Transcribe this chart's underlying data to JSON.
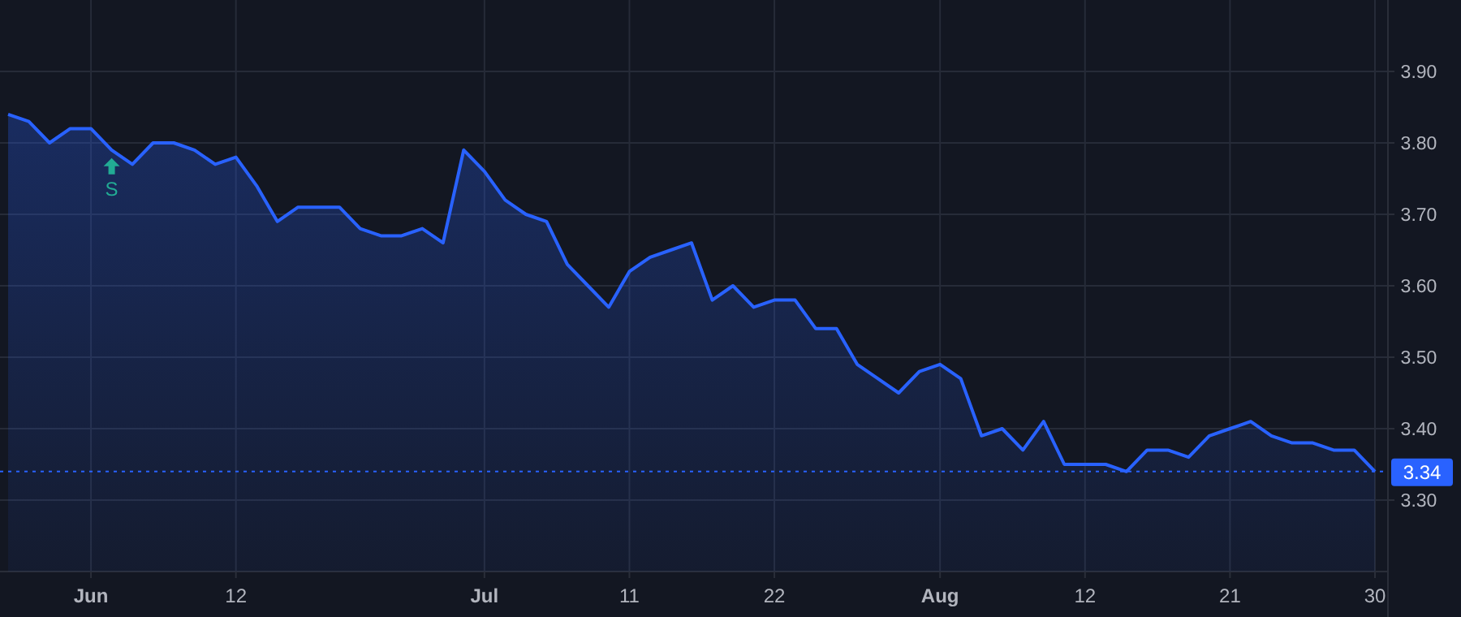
{
  "chart_data": {
    "type": "area",
    "categories": [
      null,
      null,
      null,
      null,
      "Jun",
      null,
      null,
      null,
      null,
      null,
      null,
      "12",
      null,
      null,
      null,
      null,
      null,
      null,
      null,
      null,
      null,
      null,
      null,
      "Jul",
      null,
      null,
      null,
      null,
      null,
      null,
      "11",
      null,
      null,
      null,
      null,
      null,
      null,
      "22",
      null,
      null,
      null,
      null,
      null,
      null,
      null,
      "Aug",
      null,
      null,
      null,
      null,
      null,
      null,
      "12",
      null,
      null,
      null,
      null,
      null,
      null,
      "21",
      null,
      null,
      null,
      null,
      null,
      null,
      "30"
    ],
    "series": [
      {
        "color": "#2962ff",
        "values": [
          3.84,
          3.83,
          3.8,
          3.82,
          3.82,
          3.79,
          3.77,
          3.8,
          3.8,
          3.79,
          3.77,
          3.78,
          3.74,
          3.69,
          3.71,
          3.71,
          3.71,
          3.68,
          3.67,
          3.67,
          3.68,
          3.66,
          3.79,
          3.76,
          3.72,
          3.7,
          3.69,
          3.63,
          3.6,
          3.57,
          3.62,
          3.64,
          3.65,
          3.66,
          3.58,
          3.6,
          3.57,
          3.58,
          3.58,
          3.54,
          3.54,
          3.49,
          3.47,
          3.45,
          3.48,
          3.49,
          3.47,
          3.39,
          3.4,
          3.37,
          3.41,
          3.35,
          3.35,
          3.35,
          3.34,
          3.37,
          3.37,
          3.36,
          3.39,
          3.4,
          3.41,
          3.39,
          3.38,
          3.38,
          3.37,
          3.37,
          3.34
        ]
      }
    ],
    "ylim": [
      3.2,
      4.0
    ],
    "yticks": [
      {
        "value": 3.3,
        "label": "3.30"
      },
      {
        "value": 3.4,
        "label": "3.40"
      },
      {
        "value": 3.5,
        "label": "3.50"
      },
      {
        "value": 3.6,
        "label": "3.60"
      },
      {
        "value": 3.7,
        "label": "3.70"
      },
      {
        "value": 3.8,
        "label": "3.80"
      },
      {
        "value": 3.9,
        "label": "3.90"
      }
    ],
    "grid": true,
    "ref_lines": [
      {
        "axis": "y",
        "value": 3.34,
        "label": "3.34",
        "color": "#2962ff",
        "line_style": "dotted"
      }
    ],
    "annotations": [
      {
        "text": "S",
        "y": 3.79
      }
    ]
  }
}
